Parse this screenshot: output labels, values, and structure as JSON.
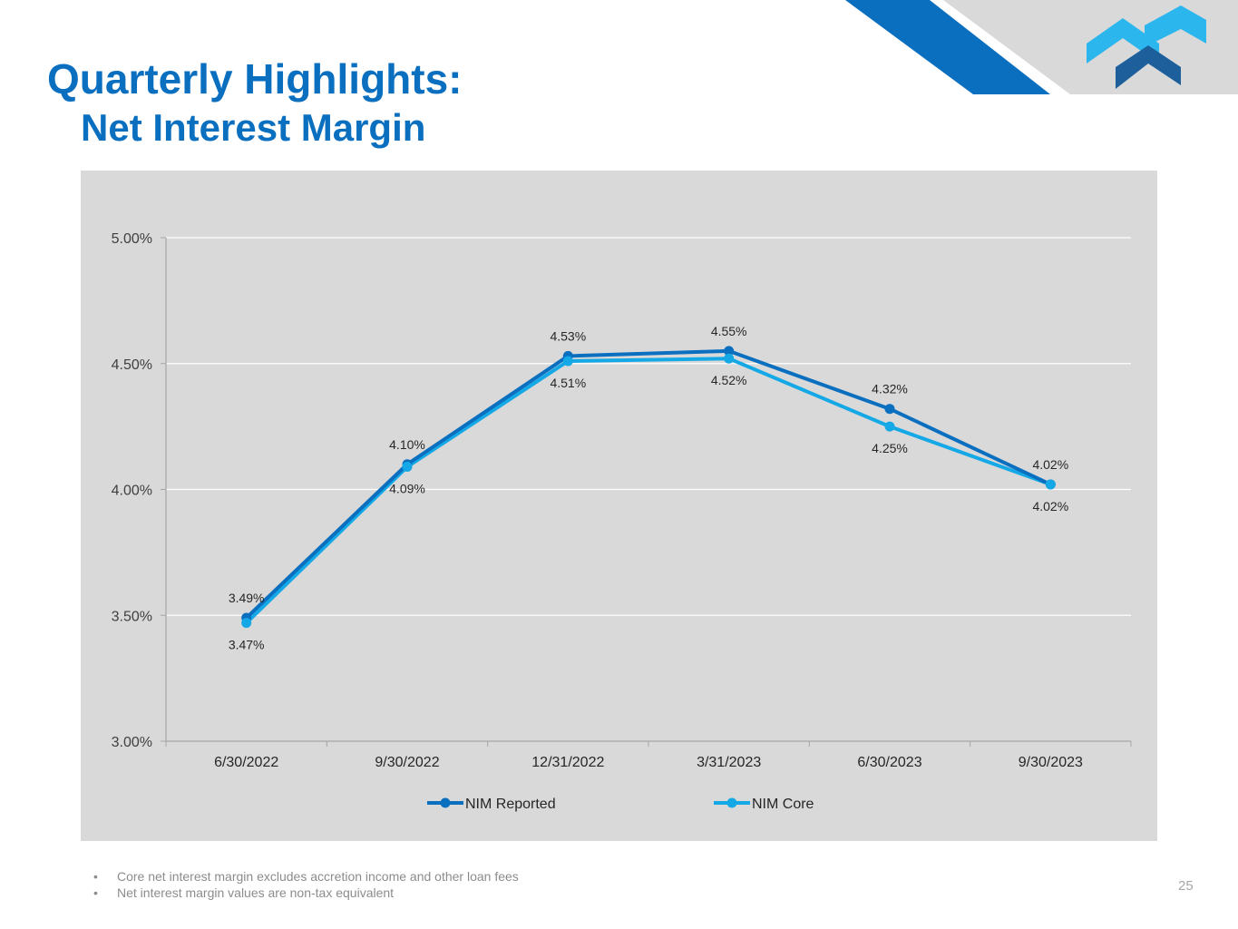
{
  "slide": {
    "title_line1": "Quarterly Highlights:",
    "title_line2": "Net Interest Margin",
    "page_number": "25",
    "footnotes": [
      "Core net interest margin excludes accretion income and other loan fees",
      "Net interest margin values are non-tax equivalent"
    ],
    "footnote_bullet": "•"
  },
  "colors": {
    "title": "#0b6fc0",
    "nim_reported": "#0b6fc0",
    "nim_core": "#14a9e6",
    "panel_background": "#d9d9d9",
    "logo_dark": "#1c5f9a",
    "logo_light": "#2bb6ee",
    "banner_blue": "#0b6fc0",
    "banner_gray": "#d9d9d9"
  },
  "chart_data": {
    "type": "line",
    "title": "",
    "xlabel": "",
    "ylabel": "",
    "categories": [
      "6/30/2022",
      "9/30/2022",
      "12/31/2022",
      "3/31/2023",
      "6/30/2023",
      "9/30/2023"
    ],
    "ylim": [
      3.0,
      5.0
    ],
    "yticks": [
      3.0,
      3.5,
      4.0,
      4.5,
      5.0
    ],
    "ytick_labels": [
      "3.00%",
      "3.50%",
      "4.00%",
      "4.50%",
      "5.00%"
    ],
    "grid": true,
    "legend_position": "bottom",
    "series": [
      {
        "name": "NIM Reported",
        "values": [
          3.49,
          4.1,
          4.53,
          4.55,
          4.32,
          4.02
        ],
        "labels": [
          "3.49%",
          "4.10%",
          "4.53%",
          "4.55%",
          "4.32%",
          "4.02%"
        ],
        "label_position": "above"
      },
      {
        "name": "NIM Core",
        "values": [
          3.47,
          4.09,
          4.51,
          4.52,
          4.25,
          4.02
        ],
        "labels": [
          "3.47%",
          "4.09%",
          "4.51%",
          "4.52%",
          "4.25%",
          "4.02%"
        ],
        "label_position": "below"
      }
    ]
  }
}
